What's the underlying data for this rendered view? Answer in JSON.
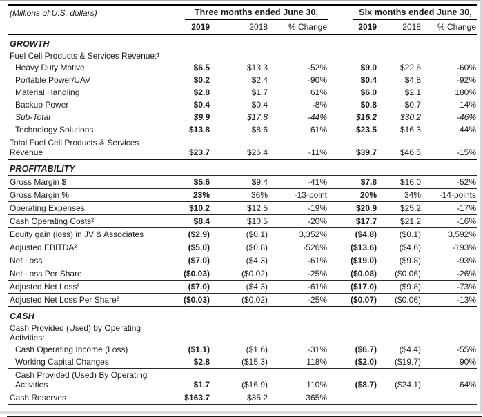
{
  "page": {
    "units_label": "(Millions of U.S. dollars)",
    "col_groups": [
      {
        "label": "Three months ended June 30,"
      },
      {
        "label": "Six months ended June 30,"
      }
    ],
    "columns": [
      "2019",
      "2018",
      "% Change",
      "2019",
      "2018",
      "% Change"
    ],
    "text_color": "#1b1b1b",
    "rule_color": "#000000"
  },
  "rows": [
    {
      "type": "section",
      "label": "GROWTH"
    },
    {
      "type": "label",
      "label": "Fuel Cell Products & Services Revenue:¹"
    },
    {
      "type": "data",
      "label": "Heavy Duty Motive",
      "indent": 1,
      "values": [
        "$6.5",
        "$13.3",
        "-52%",
        "$9.0",
        "$22.6",
        "-60%"
      ]
    },
    {
      "type": "data",
      "label": "Portable Power/UAV",
      "indent": 1,
      "values": [
        "$0.2",
        "$2.4",
        "-90%",
        "$0.4",
        "$4.8",
        "-92%"
      ]
    },
    {
      "type": "data",
      "label": "Material Handling",
      "indent": 1,
      "values": [
        "$2.8",
        "$1.7",
        "61%",
        "$6.0",
        "$2.1",
        "180%"
      ]
    },
    {
      "type": "data",
      "label": "Backup Power",
      "indent": 1,
      "values": [
        "$0.4",
        "$0.4",
        "-8%",
        "$0.8",
        "$0.7",
        "14%"
      ]
    },
    {
      "type": "data",
      "label": "Sub-Total",
      "indent": 1,
      "italic": true,
      "values": [
        "$9.9",
        "$17.8",
        "-44%",
        "$16.2",
        "$30.2",
        "-46%"
      ]
    },
    {
      "type": "data",
      "label": "Technology Solutions",
      "indent": 1,
      "border": "thin",
      "values": [
        "$13.8",
        "$8.6",
        "61%",
        "$23.5",
        "$16.3",
        "44%"
      ]
    },
    {
      "type": "data",
      "label": "Total Fuel Cell Products & Services\nRevenue",
      "border": "thick",
      "values": [
        "$23.7",
        "$26.4",
        "-11%",
        "$39.7",
        "$46.5",
        "-15%"
      ]
    },
    {
      "type": "section",
      "label": "PROFITABILITY",
      "border": "thin"
    },
    {
      "type": "data",
      "label": "Gross Margin $",
      "border": "thin",
      "values": [
        "$5.6",
        "$9.4",
        "-41%",
        "$7.8",
        "$16.0",
        "-52%"
      ]
    },
    {
      "type": "data",
      "label": "Gross Margin %",
      "border": "thin",
      "values": [
        "23%",
        "36%",
        "-13-point",
        "20%",
        "34%",
        "-14-points"
      ]
    },
    {
      "type": "data",
      "label": "Operating Expenses",
      "border": "thin",
      "values": [
        "$10.2",
        "$12.5",
        "-19%",
        "$20.9",
        "$25.2",
        "-17%"
      ]
    },
    {
      "type": "data",
      "label": "Cash Operating Costs²",
      "border": "thin",
      "values": [
        "$8.4",
        "$10.5",
        "-20%",
        "$17.7",
        "$21.2",
        "-16%"
      ]
    },
    {
      "type": "data",
      "label": "Equity gain (loss) in JV & Associates",
      "border": "thin",
      "values": [
        "($2.9)",
        "($0.1)",
        "3,352%",
        "($4.8)",
        "($0.1)",
        "3,592%"
      ]
    },
    {
      "type": "data",
      "label": "Adjusted EBITDA²",
      "border": "thin",
      "values": [
        "($5.0)",
        "($0.8)",
        "-526%",
        "($13.6)",
        "($4.6)",
        "-193%"
      ]
    },
    {
      "type": "data",
      "label": "Net Loss",
      "border": "thin",
      "values": [
        "($7.0)",
        "($4.3)",
        "-61%",
        "($19.0)",
        "($9.8)",
        "-93%"
      ]
    },
    {
      "type": "data",
      "label": "Net Loss Per Share",
      "border": "thin",
      "values": [
        "($0.03)",
        "($0.02)",
        "-25%",
        "($0.08)",
        "($0.06)",
        "-26%"
      ]
    },
    {
      "type": "data",
      "label": "Adjusted Net Loss²",
      "border": "thin",
      "values": [
        "($7.0)",
        "($4.3)",
        "-61%",
        "($17.0)",
        "($9.8)",
        "-73%"
      ]
    },
    {
      "type": "data",
      "label": "Adjusted Net Loss Per Share²",
      "border": "thick",
      "values": [
        "($0.03)",
        "($0.02)",
        "-25%",
        "($0.07)",
        "($0.06)",
        "-13%"
      ]
    },
    {
      "type": "section",
      "label": "CASH"
    },
    {
      "type": "label",
      "label": "Cash Provided (Used) by Operating\nActivities:"
    },
    {
      "type": "data",
      "label": "Cash Operating Income (Loss)",
      "indent": 1,
      "values": [
        "($1.1)",
        "($1.6)",
        "-31%",
        "($6.7)",
        "($4.4)",
        "-55%"
      ]
    },
    {
      "type": "data",
      "label": "Working Capital Changes",
      "indent": 1,
      "border": "thin",
      "values": [
        "$2.8",
        "($15.3)",
        "118%",
        "($2.0)",
        "($19.7)",
        "90%"
      ]
    },
    {
      "type": "data",
      "label": "Cash Provided (Used) By Operating\nActivities",
      "indent": 1,
      "border": "thin",
      "values": [
        "$1.7",
        "($16.9)",
        "110%",
        "($8.7)",
        "($24.1)",
        "64%"
      ]
    },
    {
      "type": "data",
      "label": "Cash Reserves",
      "border": "thin",
      "values": [
        "$163.7",
        "$35.2",
        "365%",
        "",
        "",
        ""
      ]
    }
  ]
}
